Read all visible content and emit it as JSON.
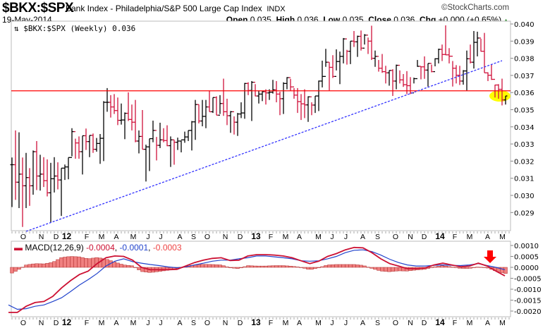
{
  "header": {
    "symbol": "$BKX:$SPX",
    "description": "Bank Index - Philadelphia/S&P 500 Large Cap Index",
    "exchange": "INDX",
    "watermark": "©StockCharts.com",
    "date": "19-May-2014",
    "open_label": "Open",
    "open": "0.035",
    "high_label": "High",
    "high": "0.036",
    "low_label": "Low",
    "low": "0.035",
    "close_label": "Close",
    "close": "0.036",
    "chg_label": "Chg",
    "chg": "+0.000 (+0.65%)",
    "chg_direction": "up"
  },
  "colors": {
    "up_bar": "#000000",
    "down_bar": "#d0103a",
    "resistance": "#ff0000",
    "trendline": "#3333ff",
    "highlight": "#ffff00",
    "macd": "#cc1133",
    "signal": "#2244cc",
    "histogram": "#f08080",
    "arrow": "#ff0000"
  },
  "chart_data": [
    {
      "type": "ohlc",
      "title": "$BKX:$SPX (Weekly) 0.036",
      "frequency": "weekly",
      "ylim": [
        0.0282,
        0.0402
      ],
      "yticks": [
        "0.040",
        "0.039",
        "0.038",
        "0.037",
        "0.036",
        "0.035",
        "0.034",
        "0.033",
        "0.032",
        "0.031",
        "0.030",
        "0.029"
      ],
      "xticks": [
        "O",
        "N",
        "D",
        "12",
        "F",
        "M",
        "A",
        "M",
        "J",
        "J",
        "A",
        "S",
        "O",
        "N",
        "D",
        "13",
        "F",
        "M",
        "A",
        "M",
        "J",
        "J",
        "A",
        "S",
        "O",
        "N",
        "D",
        "14",
        "F",
        "M",
        "A",
        "M"
      ],
      "grid": false,
      "high": [
        0.03221,
        0.03379,
        0.03368,
        0.03221,
        0.03248,
        0.03159,
        0.03262,
        0.03317,
        0.03237,
        0.03223,
        0.0321,
        0.0319,
        0.03223,
        0.03193,
        0.03159,
        0.0318,
        0.03221,
        0.03392,
        0.03331,
        0.03344,
        0.03348,
        0.0339,
        0.0335,
        0.03361,
        0.03335,
        0.03358,
        0.0355,
        0.03626,
        0.03585,
        0.03591,
        0.03571,
        0.03536,
        0.03484,
        0.03601,
        0.0353,
        0.03557,
        0.03379,
        0.03498,
        0.03296,
        0.03331,
        0.03436,
        0.03341,
        0.03424,
        0.03392,
        0.03409,
        0.03344,
        0.03324,
        0.03337,
        0.0332,
        0.03372,
        0.03379,
        0.03434,
        0.03557,
        0.0353,
        0.03557,
        0.03557,
        0.03612,
        0.03571,
        0.03578,
        0.03585,
        0.03681,
        0.03564,
        0.03492,
        0.03461,
        0.03481,
        0.03543,
        0.03656,
        0.0366,
        0.03667,
        0.03649,
        0.03612,
        0.03608,
        0.03619,
        0.03619,
        0.03674,
        0.03667,
        0.03605,
        0.0366,
        0.0369,
        0.0368,
        0.03626,
        0.03626,
        0.03591,
        0.03619,
        0.03578,
        0.03543,
        0.0358,
        0.0367,
        0.03786,
        0.03855,
        0.03777,
        0.03818,
        0.03852,
        0.03839,
        0.03918,
        0.03849,
        0.039,
        0.03959,
        0.03932,
        0.03962,
        0.03941,
        0.03921,
        0.0399,
        0.03845,
        0.0379,
        0.03825,
        0.03756,
        0.03729,
        0.03736,
        0.03763,
        0.03729,
        0.03708,
        0.03725,
        0.0369,
        0.03687,
        0.0379,
        0.03753,
        0.03811,
        0.0377,
        0.03763,
        0.038,
        0.03856,
        0.0388,
        0.03992,
        0.03859,
        0.03784,
        0.0376,
        0.03756,
        0.03731,
        0.03845,
        0.0388,
        0.03959,
        0.03955,
        0.03914,
        0.03948,
        0.03718,
        0.03763,
        0.03646,
        0.03649,
        0.03681,
        0.0358
      ],
      "low": [
        0.02932,
        0.02974,
        0.02926,
        0.02816,
        0.02926,
        0.02939,
        0.03004,
        0.03031,
        0.03028,
        0.03049,
        0.02994,
        0.02843,
        0.03017,
        0.03035,
        0.0288,
        0.0309,
        0.03094,
        0.03228,
        0.03214,
        0.03214,
        0.03122,
        0.03265,
        0.03223,
        0.03248,
        0.03255,
        0.03184,
        0.032,
        0.03488,
        0.03454,
        0.03475,
        0.0341,
        0.03413,
        0.03328,
        0.03434,
        0.03379,
        0.0331,
        0.03245,
        0.03269,
        0.03081,
        0.03142,
        0.0331,
        0.03204,
        0.03276,
        0.0331,
        0.03287,
        0.03166,
        0.03179,
        0.03265,
        0.03251,
        0.03307,
        0.03317,
        0.03262,
        0.03324,
        0.0342,
        0.03403,
        0.03392,
        0.03488,
        0.03481,
        0.03468,
        0.03475,
        0.03464,
        0.0341,
        0.03365,
        0.03355,
        0.03347,
        0.03451,
        0.03447,
        0.03585,
        0.03434,
        0.03578,
        0.03536,
        0.0355,
        0.0353,
        0.03557,
        0.03594,
        0.03543,
        0.03468,
        0.03475,
        0.03619,
        0.03612,
        0.03564,
        0.03481,
        0.0344,
        0.03451,
        0.03429,
        0.03468,
        0.03481,
        0.03492,
        0.0363,
        0.0375,
        0.03612,
        0.03685,
        0.03729,
        0.03649,
        0.0377,
        0.03763,
        0.03766,
        0.03866,
        0.03808,
        0.03845,
        0.0388,
        0.03825,
        0.0379,
        0.0375,
        0.03722,
        0.03715,
        0.03653,
        0.0364,
        0.0358,
        0.03619,
        0.03653,
        0.03633,
        0.03591,
        0.03591,
        0.03653,
        0.0375,
        0.03677,
        0.0368,
        0.03635,
        0.03718,
        0.03753,
        0.0377,
        0.03784,
        0.03818,
        0.0377,
        0.03635,
        0.03653,
        0.03644,
        0.03646,
        0.03612,
        0.0377,
        0.0374,
        0.03811,
        0.03839,
        0.03715,
        0.03667,
        0.03674,
        0.03571,
        0.03564,
        0.03525,
        0.0353
      ],
      "close": [
        0.03179,
        0.03077,
        0.03124,
        0.03056,
        0.03104,
        0.03056,
        0.03255,
        0.03113,
        0.03124,
        0.03086,
        0.03015,
        0.03097,
        0.03113,
        0.0309,
        0.03159,
        0.03166,
        0.03221,
        0.03372,
        0.03306,
        0.03255,
        0.03348,
        0.03314,
        0.0335,
        0.03269,
        0.03303,
        0.03333,
        0.03543,
        0.03543,
        0.03516,
        0.03495,
        0.03438,
        0.0344,
        0.03479,
        0.03443,
        0.03427,
        0.03317,
        0.03344,
        0.03269,
        0.03283,
        0.03331,
        0.03379,
        0.03292,
        0.03324,
        0.0332,
        0.0329,
        0.03324,
        0.0331,
        0.03317,
        0.03324,
        0.03341,
        0.03379,
        0.03429,
        0.0353,
        0.03434,
        0.03461,
        0.03516,
        0.03488,
        0.03571,
        0.03468,
        0.03536,
        0.03488,
        0.03465,
        0.03488,
        0.03427,
        0.03475,
        0.03481,
        0.03653,
        0.03612,
        0.0366,
        0.0358,
        0.03591,
        0.03605,
        0.03598,
        0.03602,
        0.03616,
        0.03591,
        0.03564,
        0.03653,
        0.03687,
        0.03633,
        0.03585,
        0.03547,
        0.03534,
        0.03528,
        0.03575,
        0.03527,
        0.0358,
        0.03667,
        0.03694,
        0.03777,
        0.03747,
        0.03694,
        0.03781,
        0.03811,
        0.03913,
        0.03841,
        0.039,
        0.03896,
        0.03928,
        0.03859,
        0.03935,
        0.039,
        0.038,
        0.03811,
        0.03742,
        0.03722,
        0.03715,
        0.03729,
        0.03667,
        0.03759,
        0.03674,
        0.03646,
        0.0364,
        0.03598,
        0.03681,
        0.03753,
        0.0375,
        0.03731,
        0.0377,
        0.03722,
        0.03797,
        0.03852,
        0.03822,
        0.0382,
        0.03812,
        0.03742,
        0.03701,
        0.03667,
        0.03726,
        0.03797,
        0.03777,
        0.03893,
        0.03918,
        0.03841,
        0.03715,
        0.03701,
        0.03677,
        0.03644,
        0.03619,
        0.03557,
        0.0358
      ],
      "horizontal_line": 0.0361,
      "trendline": {
        "start_bar": 4,
        "start_value": 0.0279,
        "end_bar": 139,
        "end_value": 0.03786
      },
      "highlight": {
        "bar": 139,
        "value": 0.0358
      }
    },
    {
      "type": "line",
      "title": "MACD(12,26,9)",
      "values": {
        "macd": "-0.0004",
        "signal": "-0.0001",
        "histogram": "-0.0003"
      },
      "ylim": [
        -0.0022,
        0.0011
      ],
      "yticks": [
        "0.0010",
        "0.0005",
        "0.0000",
        "-0.0005",
        "-0.0010",
        "-0.0015",
        "-0.0020"
      ],
      "xticks": [
        "O",
        "N",
        "D",
        "12",
        "F",
        "M",
        "A",
        "M",
        "J",
        "J",
        "A",
        "S",
        "O",
        "N",
        "D",
        "13",
        "F",
        "M",
        "A",
        "M",
        "J",
        "J",
        "A",
        "S",
        "O",
        "N",
        "D",
        "14",
        "F",
        "M",
        "A",
        "M"
      ],
      "macd": [
        -0.00206,
        -0.00206,
        -0.00178,
        -0.00161,
        -0.00156,
        -0.00133,
        -0.00094,
        -0.00061,
        -0.00033,
        -0.00017,
        0.00017,
        0.00044,
        0.00052,
        0.0005,
        0.00033,
        0,
        -0.00011,
        -0.00011,
        -0.00011,
        -9e-05,
        6e-05,
        0.00022,
        0.00033,
        0.00041,
        0.00044,
        0.00031,
        0.00033,
        0.00052,
        0.00058,
        0.00058,
        0.00056,
        0.00052,
        0.00044,
        0.0003,
        0.00017,
        0.00028,
        0.0005,
        0.00063,
        0.0008,
        0.00091,
        0.00089,
        0.00067,
        0.00039,
        0.00017,
        6e-05,
        -6e-05,
        -6e-05,
        -3e-05,
        0.00011,
        0.00019,
        0.00011,
        3e-05,
        6e-05,
        0.00019,
        6e-05,
        -0.00017,
        -0.00039
      ],
      "signal": [
        -0.00172,
        -0.00192,
        -0.00189,
        -0.00178,
        -0.00172,
        -0.00156,
        -0.00139,
        -0.00111,
        -0.00081,
        -0.00056,
        -0.00028,
        6e-05,
        0.00028,
        0.00039,
        0.00026,
        0.00019,
        0.00013,
        8e-05,
        2e-05,
        -2e-05,
        2e-05,
        0.00011,
        0.00019,
        0.00028,
        0.00033,
        0.00033,
        0.00039,
        0.00044,
        0.00052,
        0.00052,
        0.00048,
        0.00044,
        0.00039,
        0.0003,
        0.00028,
        0.0003,
        0.00039,
        0.0005,
        0.00067,
        0.00078,
        0.0008,
        0.00072,
        0.00056,
        0.00037,
        0.00022,
        0.00011,
        6e-05,
        6e-05,
        9e-05,
        0.00011,
        9e-05,
        8e-05,
        0.00011,
        0.00017,
        8e-05,
        0,
        -0.00011
      ],
      "annotation": {
        "type": "down-arrow",
        "near": "April 2014"
      }
    }
  ]
}
